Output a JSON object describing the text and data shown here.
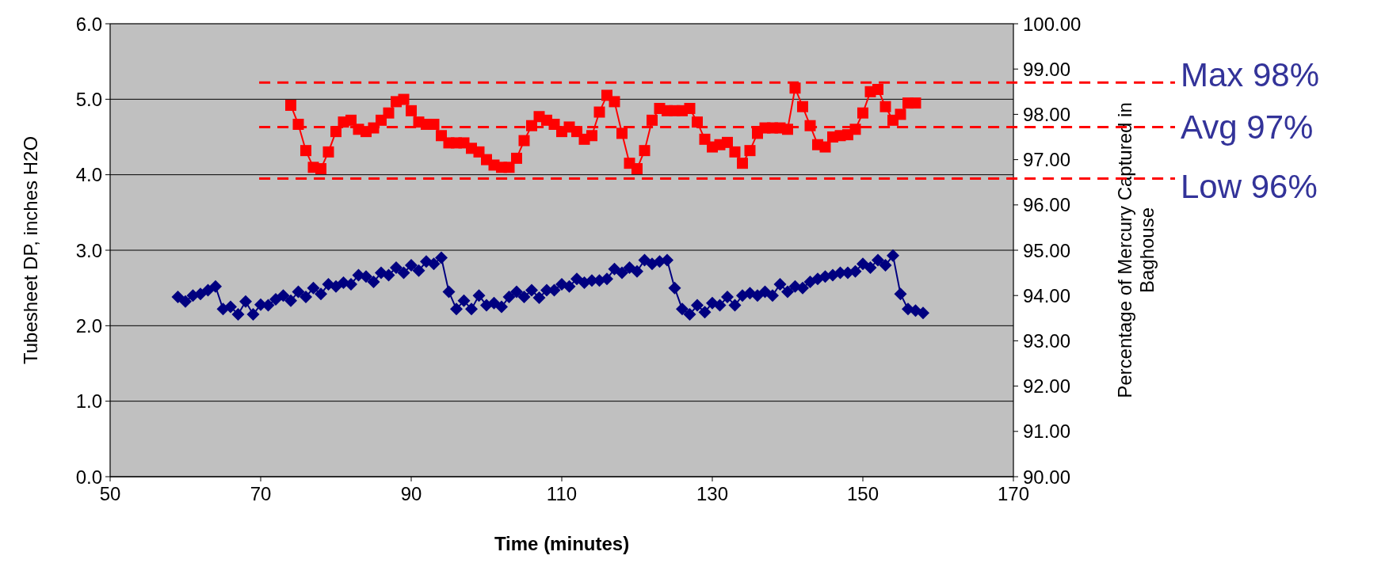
{
  "chart_data": {
    "type": "line",
    "xlabel": "Time (minutes)",
    "ylabel": "Tubesheet DP, inches H2O",
    "y2label": "Percentage of Mercury Captured in Baghouse",
    "xlim": [
      50,
      170
    ],
    "xticks": [
      50,
      70,
      90,
      110,
      130,
      150,
      170
    ],
    "ylim": [
      0,
      6
    ],
    "yticks": [
      {
        "value": 0,
        "label": "0.0"
      },
      {
        "value": 1,
        "label": "1.0"
      },
      {
        "value": 2,
        "label": "2.0"
      },
      {
        "value": 3,
        "label": "3.0"
      },
      {
        "value": 4,
        "label": "4.0"
      },
      {
        "value": 5,
        "label": "5.0"
      },
      {
        "value": 6,
        "label": "6.0"
      }
    ],
    "y2lim": [
      90,
      100
    ],
    "y2ticks": [
      {
        "value": 90,
        "label": "90.00"
      },
      {
        "value": 91,
        "label": "91.00"
      },
      {
        "value": 92,
        "label": "92.00"
      },
      {
        "value": 93,
        "label": "93.00"
      },
      {
        "value": 94,
        "label": "94.00"
      },
      {
        "value": 95,
        "label": "95.00"
      },
      {
        "value": 96,
        "label": "96.00"
      },
      {
        "value": 97,
        "label": "97.00"
      },
      {
        "value": 98,
        "label": "98.00"
      },
      {
        "value": 99,
        "label": "99.00"
      },
      {
        "value": 100,
        "label": "100.00"
      }
    ],
    "grid": "y",
    "line_style": "solid",
    "series": [
      {
        "color": "#000080",
        "marker": "diamond",
        "x": [
          59,
          60,
          61,
          62,
          63,
          64,
          65,
          66,
          67,
          68,
          69,
          70,
          71,
          72,
          73,
          74,
          75,
          76,
          77,
          78,
          79,
          80,
          81,
          82,
          83,
          84,
          85,
          86,
          87,
          88,
          89,
          90,
          91,
          92,
          93,
          94,
          95,
          96,
          97,
          98,
          99,
          100,
          101,
          102,
          103,
          104,
          105,
          106,
          107,
          108,
          109,
          110,
          111,
          112,
          113,
          114,
          115,
          116,
          117,
          118,
          119,
          120,
          121,
          122,
          123,
          124,
          125,
          126,
          127,
          128,
          129,
          130,
          131,
          132,
          133,
          134,
          135,
          136,
          137,
          138,
          139,
          140,
          141,
          142,
          143,
          144,
          145,
          146,
          147,
          148,
          149,
          150,
          151,
          152,
          153,
          154,
          155,
          156,
          157,
          158
        ],
        "values": [
          2.38,
          2.32,
          2.4,
          2.42,
          2.47,
          2.52,
          2.22,
          2.25,
          2.15,
          2.32,
          2.15,
          2.28,
          2.27,
          2.35,
          2.4,
          2.33,
          2.45,
          2.38,
          2.5,
          2.42,
          2.55,
          2.52,
          2.57,
          2.55,
          2.67,
          2.65,
          2.58,
          2.7,
          2.67,
          2.77,
          2.7,
          2.8,
          2.73,
          2.85,
          2.82,
          2.9,
          2.45,
          2.22,
          2.33,
          2.22,
          2.4,
          2.27,
          2.3,
          2.25,
          2.38,
          2.45,
          2.38,
          2.47,
          2.37,
          2.47,
          2.47,
          2.55,
          2.52,
          2.62,
          2.57,
          2.6,
          2.6,
          2.62,
          2.75,
          2.7,
          2.77,
          2.72,
          2.87,
          2.82,
          2.85,
          2.87,
          2.5,
          2.22,
          2.15,
          2.27,
          2.18,
          2.3,
          2.27,
          2.38,
          2.27,
          2.4,
          2.43,
          2.4,
          2.45,
          2.4,
          2.55,
          2.45,
          2.52,
          2.5,
          2.58,
          2.62,
          2.65,
          2.67,
          2.7,
          2.7,
          2.72,
          2.82,
          2.77,
          2.87,
          2.8,
          2.93,
          2.42,
          2.22,
          2.2,
          2.17
        ]
      },
      {
        "color": "#ff0000",
        "marker": "square",
        "axis": "y2",
        "x": [
          74,
          75,
          76,
          77,
          78,
          79,
          80,
          81,
          82,
          83,
          84,
          85,
          86,
          87,
          88,
          89,
          90,
          91,
          92,
          93,
          94,
          95,
          96,
          97,
          98,
          99,
          100,
          101,
          102,
          103,
          104,
          105,
          106,
          107,
          108,
          109,
          110,
          111,
          112,
          113,
          114,
          115,
          116,
          117,
          118,
          119,
          120,
          121,
          122,
          123,
          124,
          125,
          126,
          127,
          128,
          129,
          130,
          131,
          132,
          133,
          134,
          135,
          136,
          137,
          138,
          139,
          140,
          141,
          142,
          143,
          144,
          145,
          146,
          147,
          148,
          149,
          150,
          151,
          152,
          153,
          154,
          155,
          156,
          157
        ],
        "values": [
          98.2,
          97.78,
          97.2,
          96.83,
          96.8,
          97.17,
          97.62,
          97.83,
          97.87,
          97.67,
          97.62,
          97.7,
          97.87,
          98.03,
          98.28,
          98.33,
          98.08,
          97.83,
          97.78,
          97.78,
          97.53,
          97.37,
          97.37,
          97.37,
          97.25,
          97.17,
          97.0,
          96.88,
          96.83,
          96.83,
          97.03,
          97.42,
          97.75,
          97.95,
          97.87,
          97.78,
          97.62,
          97.72,
          97.62,
          97.45,
          97.53,
          98.05,
          98.42,
          98.28,
          97.58,
          96.92,
          96.8,
          97.2,
          97.87,
          98.13,
          98.08,
          98.08,
          98.08,
          98.13,
          97.83,
          97.45,
          97.28,
          97.33,
          97.38,
          97.17,
          96.92,
          97.2,
          97.58,
          97.7,
          97.7,
          97.7,
          97.67,
          98.58,
          98.17,
          97.75,
          97.33,
          97.28,
          97.5,
          97.53,
          97.55,
          97.67,
          98.03,
          98.5,
          98.55,
          98.17,
          97.87,
          98.0,
          98.25,
          98.25
        ]
      }
    ],
    "ref_lines": [
      {
        "axis": "y2",
        "value": 98.7,
        "label": "Max 98%",
        "color": "#ff0000",
        "line_style": "dashed"
      },
      {
        "axis": "y2",
        "value": 97.72,
        "label": "Avg 97%",
        "color": "#ff0000",
        "line_style": "dashed"
      },
      {
        "axis": "y2",
        "value": 96.58,
        "label": "Low 96%",
        "color": "#ff0000",
        "line_style": "dashed"
      }
    ]
  }
}
